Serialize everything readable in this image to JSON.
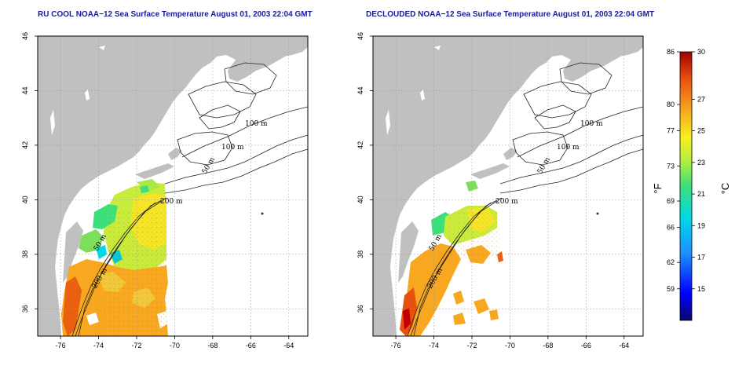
{
  "panels": [
    {
      "id": "left",
      "title": "RU COOL NOAA−12 Sea Surface Temperature August 01, 2003 22:04 GMT",
      "type": "raw"
    },
    {
      "id": "right",
      "title": "DECLOUDED NOAA−12 Sea Surface Temperature August 01, 2003 22:04 GMT",
      "type": "declouded"
    }
  ],
  "axes": {
    "lon_range": [
      -77.2,
      -63.0
    ],
    "lat_range": [
      35.0,
      46.0
    ],
    "lon_ticks": [
      -76,
      -74,
      -72,
      -70,
      -68,
      -66,
      -64
    ],
    "lon_tick_labels": [
      "-76",
      "-74",
      "-72",
      "-70",
      "-68",
      "-66",
      "-64"
    ],
    "lat_ticks": [
      36,
      38,
      40,
      42,
      44,
      46
    ],
    "lat_tick_labels": [
      "36",
      "38",
      "40",
      "42",
      "44",
      "46"
    ],
    "grid": "dotted"
  },
  "contour_labels": [
    "100 m",
    "100 m",
    "50 m",
    "200 m",
    "50 m",
    "200 m"
  ],
  "colorbar": {
    "celsius_range": [
      13,
      30
    ],
    "fahrenheit_ticks": [
      "86",
      "80",
      "77",
      "73",
      "69",
      "66",
      "62",
      "59"
    ],
    "fahrenheit_values": [
      86,
      80,
      77,
      73,
      69,
      66,
      62,
      59
    ],
    "celsius_ticks": [
      "30",
      "27",
      "25",
      "23",
      "21",
      "19",
      "17",
      "15"
    ],
    "celsius_values": [
      30,
      27,
      25,
      23,
      21,
      19,
      17,
      15
    ],
    "left_unit": "°F",
    "right_unit": "°C",
    "colors": [
      "#08086e",
      "#0000ff",
      "#1e90ff",
      "#00d8e8",
      "#3ce07a",
      "#b8f03c",
      "#f8f020",
      "#f8a820",
      "#e85010",
      "#a00000"
    ]
  },
  "colors": {
    "land": "#c0c0c0",
    "ocean": "#ffffff",
    "title": "#1a1a9c",
    "contour": "#222222",
    "grid": "#9a9a9a"
  }
}
